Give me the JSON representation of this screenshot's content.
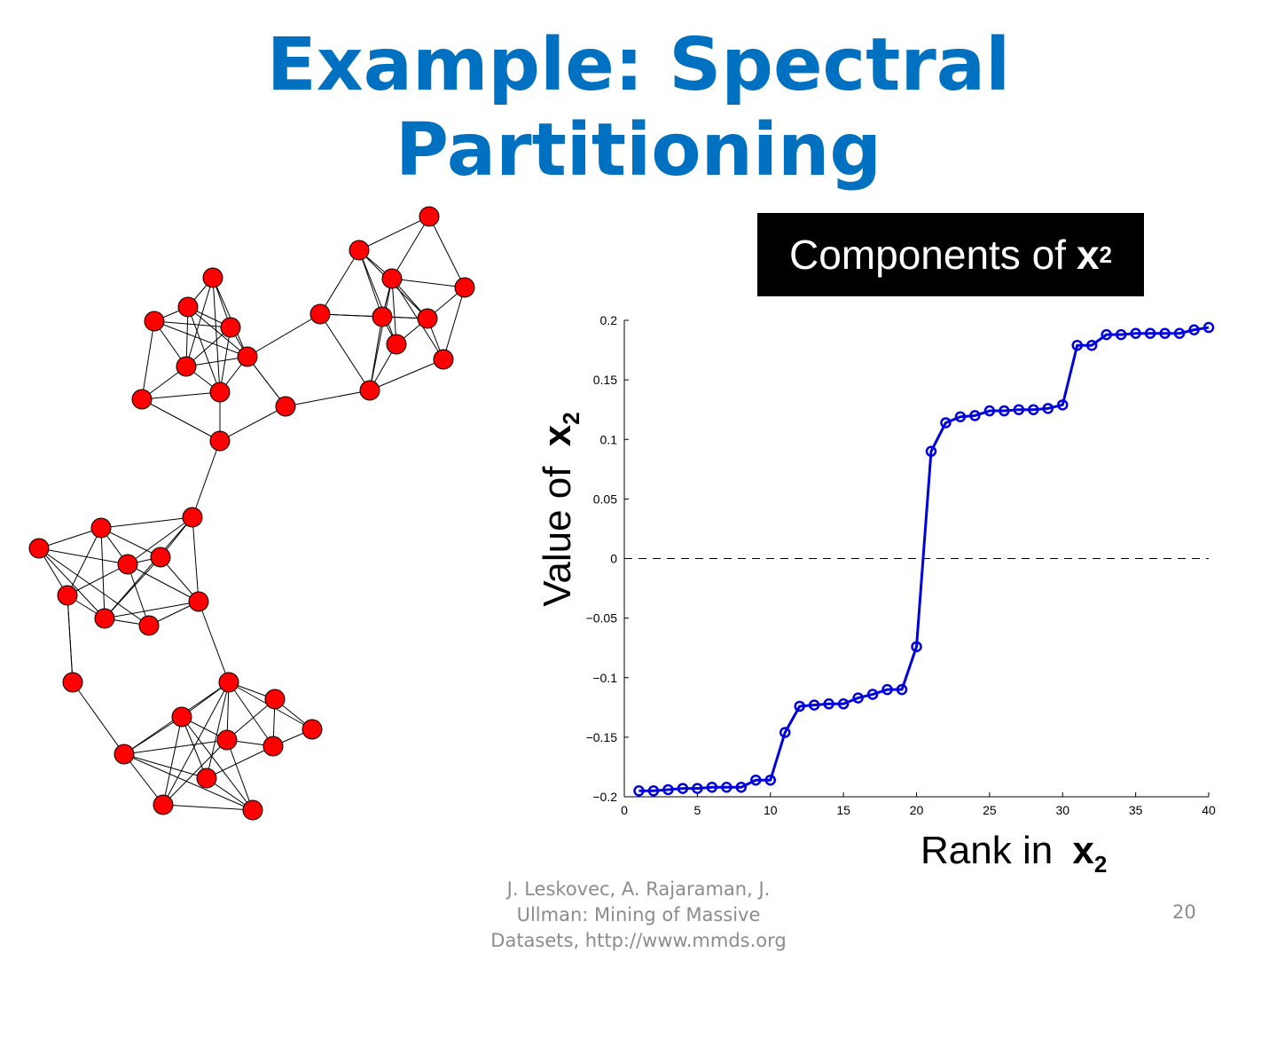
{
  "slide": {
    "title_line1": "Example: Spectral",
    "title_line2": "Partitioning",
    "callout_text": "Components of",
    "callout_var": "x",
    "callout_sub": "2",
    "footer_line1": "J. Leskovec, A. Rajaraman, J.",
    "footer_line2": "Ullman: Mining of Massive",
    "footer_line3": "Datasets, http://www.mmds.org",
    "page_number": "20",
    "title_color": "#0070C0"
  },
  "chart_data": {
    "type": "line",
    "x": [
      1,
      2,
      3,
      4,
      5,
      6,
      7,
      8,
      9,
      10,
      11,
      12,
      13,
      14,
      15,
      16,
      17,
      18,
      19,
      20,
      21,
      22,
      23,
      24,
      25,
      26,
      27,
      28,
      29,
      30,
      31,
      32,
      33,
      34,
      35,
      36,
      37,
      38,
      39,
      40
    ],
    "series": [
      {
        "values": [
          -0.195,
          -0.195,
          -0.194,
          -0.193,
          -0.193,
          -0.192,
          -0.192,
          -0.192,
          -0.186,
          -0.186,
          -0.146,
          -0.124,
          -0.123,
          -0.122,
          -0.122,
          -0.117,
          -0.114,
          -0.11,
          -0.11,
          -0.074,
          0.09,
          0.114,
          0.119,
          0.12,
          0.124,
          0.124,
          0.125,
          0.125,
          0.126,
          0.129,
          0.179,
          0.179,
          0.188,
          0.188,
          0.189,
          0.189,
          0.189,
          0.189,
          0.192,
          0.194
        ],
        "color": "#0000DD",
        "marker": "circle"
      }
    ],
    "xlabel_text": "Rank in",
    "ylabel_text": "Value of",
    "axis_var": "x",
    "axis_sub": "2",
    "xlim": [
      0,
      40
    ],
    "ylim": [
      -0.2,
      0.2
    ],
    "xticks": [
      0,
      5,
      10,
      15,
      20,
      25,
      30,
      35,
      40
    ],
    "yticks": [
      0.2,
      0.15,
      0.1,
      0.05,
      0,
      -0.05,
      -0.1,
      -0.15,
      -0.2
    ],
    "ytick_labels": [
      "0.2",
      "0.15",
      "0.1",
      "0.05",
      "0",
      "−0.05",
      "−0.1",
      "−0.15",
      "−0.2"
    ],
    "reference_line": {
      "y": 0,
      "style": "dashed"
    },
    "grid": false,
    "legend": "none"
  },
  "graph": {
    "node_color": "#FF0000",
    "edge_color": "#000000",
    "node_count": 40
  }
}
